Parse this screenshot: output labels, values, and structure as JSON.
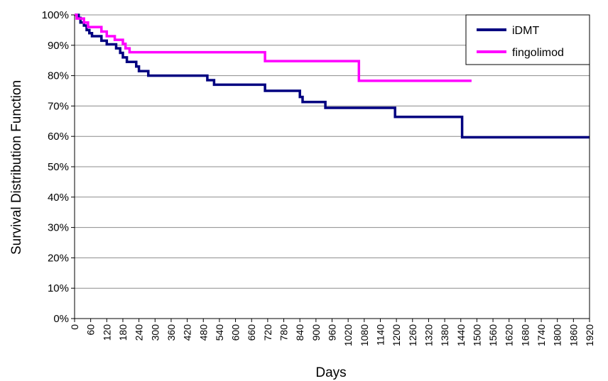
{
  "chart_data": {
    "type": "line",
    "step": true,
    "xlabel": "Days",
    "ylabel": "Survival Distribution Function",
    "xlim": [
      0,
      1920
    ],
    "ylim": [
      0,
      1
    ],
    "x_ticks": [
      0,
      60,
      120,
      180,
      240,
      300,
      360,
      420,
      480,
      540,
      600,
      660,
      720,
      780,
      840,
      900,
      960,
      1020,
      1080,
      1140,
      1200,
      1260,
      1320,
      1380,
      1440,
      1500,
      1560,
      1620,
      1680,
      1740,
      1800,
      1860,
      1920
    ],
    "y_ticks": [
      "0%",
      "10%",
      "20%",
      "30%",
      "40%",
      "50%",
      "60%",
      "70%",
      "80%",
      "90%",
      "100%"
    ],
    "y_tick_values": [
      0,
      0.1,
      0.2,
      0.3,
      0.4,
      0.5,
      0.6,
      0.7,
      0.8,
      0.9,
      1.0
    ],
    "grid": "horizontal",
    "legend_position": "top-right",
    "series": [
      {
        "name": "iDMT",
        "color": "#000080",
        "points": [
          [
            0,
            1.0
          ],
          [
            15,
            0.99
          ],
          [
            22,
            0.975
          ],
          [
            35,
            0.965
          ],
          [
            45,
            0.95
          ],
          [
            55,
            0.94
          ],
          [
            65,
            0.93
          ],
          [
            100,
            0.915
          ],
          [
            120,
            0.903
          ],
          [
            155,
            0.89
          ],
          [
            170,
            0.875
          ],
          [
            180,
            0.86
          ],
          [
            195,
            0.845
          ],
          [
            230,
            0.83
          ],
          [
            240,
            0.815
          ],
          [
            275,
            0.8
          ],
          [
            345,
            0.8
          ],
          [
            480,
            0.8
          ],
          [
            495,
            0.785
          ],
          [
            520,
            0.77
          ],
          [
            700,
            0.77
          ],
          [
            710,
            0.75
          ],
          [
            830,
            0.75
          ],
          [
            840,
            0.73
          ],
          [
            850,
            0.713
          ],
          [
            930,
            0.713
          ],
          [
            935,
            0.694
          ],
          [
            1190,
            0.694
          ],
          [
            1195,
            0.664
          ],
          [
            1440,
            0.664
          ],
          [
            1445,
            0.597
          ],
          [
            1920,
            0.597
          ]
        ]
      },
      {
        "name": "fingolimod",
        "color": "#ff00ff",
        "points": [
          [
            0,
            1.0
          ],
          [
            8,
            0.988
          ],
          [
            35,
            0.975
          ],
          [
            50,
            0.96
          ],
          [
            100,
            0.945
          ],
          [
            120,
            0.93
          ],
          [
            150,
            0.918
          ],
          [
            180,
            0.905
          ],
          [
            190,
            0.89
          ],
          [
            205,
            0.877
          ],
          [
            705,
            0.877
          ],
          [
            710,
            0.848
          ],
          [
            1055,
            0.848
          ],
          [
            1060,
            0.783
          ],
          [
            1480,
            0.783
          ]
        ]
      }
    ]
  }
}
